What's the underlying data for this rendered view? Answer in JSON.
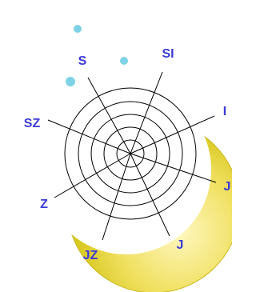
{
  "labels": [
    "S",
    "SI",
    "I",
    "J",
    "J",
    "JZ",
    "Z",
    "SZ"
  ]
}
